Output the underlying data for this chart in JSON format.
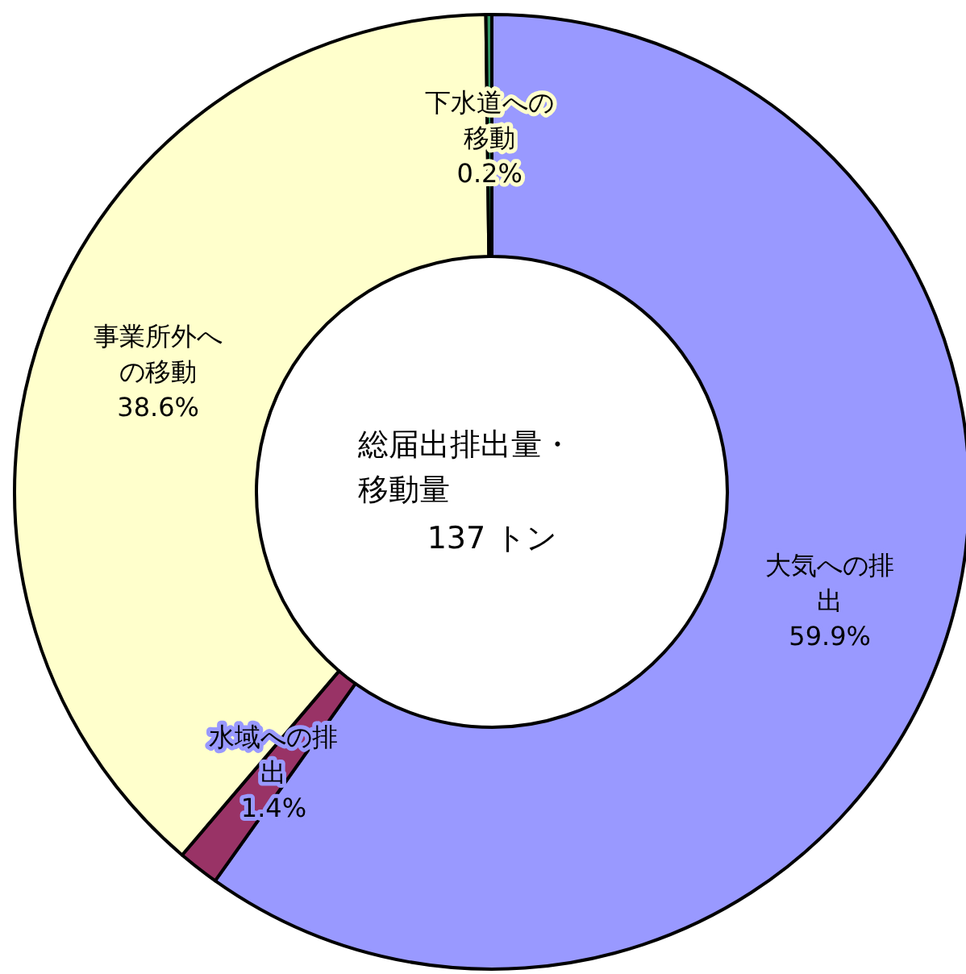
{
  "chart_data": {
    "type": "donut",
    "title": "総届出排出量・移動量",
    "subtitle": "137 トン",
    "categories": [
      "大気への排出",
      "水域への排出",
      "事業所外への移動",
      "下水道への移動"
    ],
    "values": [
      59.9,
      1.4,
      38.6,
      0.2
    ],
    "value_labels": [
      "59.9%",
      "1.4%",
      "38.6%",
      "0.2%"
    ],
    "colors": [
      "#9999ff",
      "#993366",
      "#ffffcc",
      "#339966"
    ]
  }
}
